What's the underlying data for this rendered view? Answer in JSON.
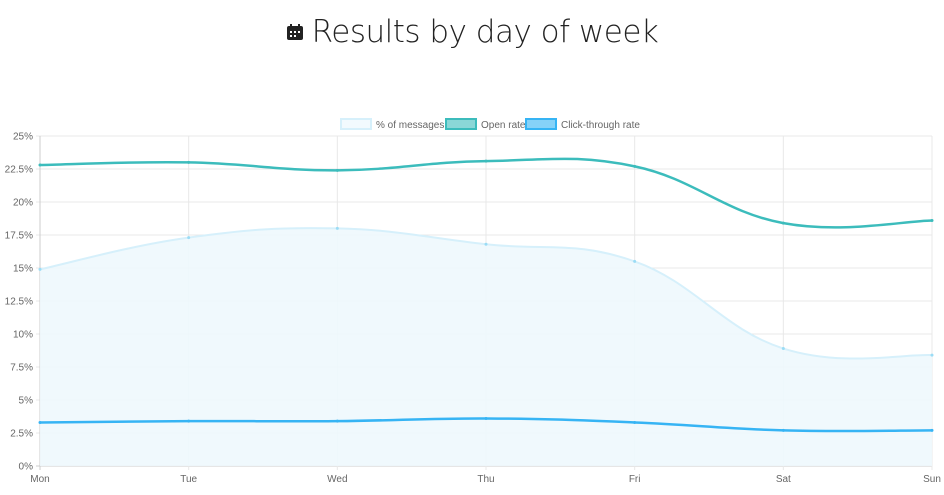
{
  "title": "Results by day of week",
  "title_icon": "calendar-icon",
  "chart_data": {
    "type": "line",
    "title": "Results by day of week",
    "categories": [
      "Mon",
      "Tue",
      "Wed",
      "Thu",
      "Fri",
      "Sat",
      "Sun"
    ],
    "ylim": [
      0,
      25
    ],
    "yticks": [
      "0%",
      "2.5%",
      "5%",
      "7.5%",
      "10%",
      "12.5%",
      "15%",
      "17.5%",
      "20%",
      "22.5%",
      "25%"
    ],
    "ytick_values": [
      0,
      2.5,
      5,
      7.5,
      10,
      12.5,
      15,
      17.5,
      20,
      22.5,
      25
    ],
    "grid": true,
    "legend_position": "top",
    "series": [
      {
        "name": "% of messages",
        "values": [
          14.9,
          17.3,
          18.0,
          16.8,
          15.5,
          8.9,
          8.4
        ],
        "color": "#d6f0fb",
        "fill": true
      },
      {
        "name": "Open rate",
        "values": [
          22.8,
          23.0,
          22.4,
          23.1,
          22.7,
          18.4,
          18.6
        ],
        "color": "#3cbcbc",
        "fill": false
      },
      {
        "name": "Click-through rate",
        "values": [
          3.3,
          3.4,
          3.4,
          3.6,
          3.3,
          2.7,
          2.7
        ],
        "color": "#36b4f4",
        "fill": false
      }
    ]
  }
}
